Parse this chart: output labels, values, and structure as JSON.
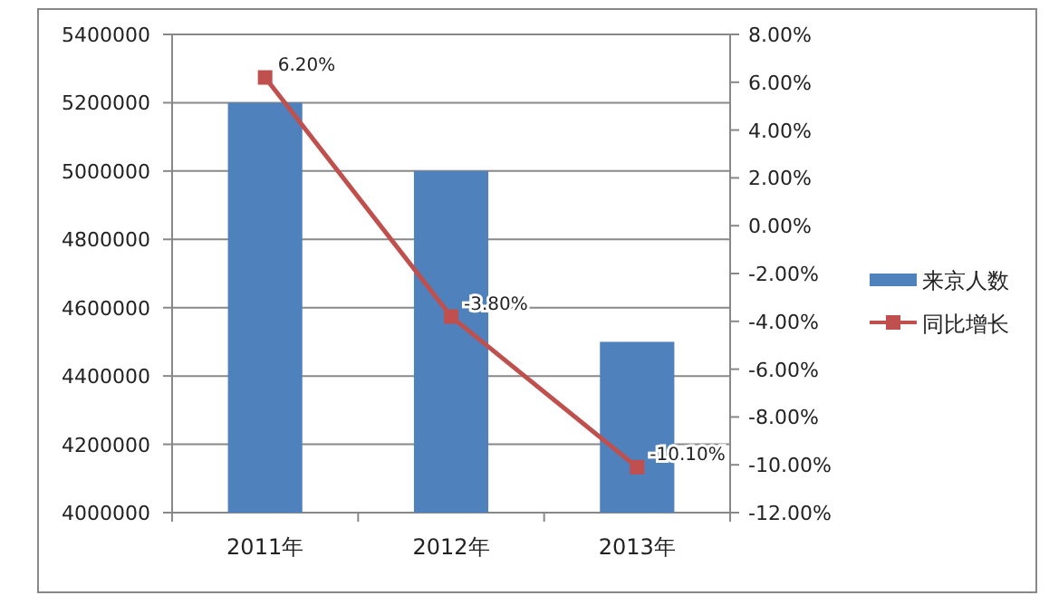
{
  "chart_data": {
    "type": "bar",
    "categories": [
      "2011年",
      "2012年",
      "2013年"
    ],
    "series": [
      {
        "name": "来京人数",
        "color": "#4f81bd",
        "values": [
          5200000,
          5000000,
          4500000
        ]
      },
      {
        "name": "同比增长",
        "type": "line",
        "axis": "y2",
        "color": "#c0504d",
        "marker": "square",
        "values": [
          6.2,
          -3.8,
          -10.1
        ],
        "value_labels": [
          "6.20%",
          "-3.80%",
          "-10.10%"
        ]
      }
    ],
    "ylim": [
      4000000,
      5400000
    ],
    "yticks": [
      4000000,
      4200000,
      4400000,
      4600000,
      4800000,
      5000000,
      5200000,
      5400000
    ],
    "y2lim": [
      -12,
      8
    ],
    "y2ticks": [
      {
        "value": -12,
        "label": "-12.00%"
      },
      {
        "value": -10,
        "label": "-10.00%"
      },
      {
        "value": -8,
        "label": "-8.00%"
      },
      {
        "value": -6,
        "label": "-6.00%"
      },
      {
        "value": -4,
        "label": "-4.00%"
      },
      {
        "value": -2,
        "label": "-2.00%"
      },
      {
        "value": 0,
        "label": "0.00%"
      },
      {
        "value": 2,
        "label": "2.00%"
      },
      {
        "value": 4,
        "label": "4.00%"
      },
      {
        "value": 6,
        "label": "6.00%"
      },
      {
        "value": 8,
        "label": "8.00%"
      }
    ],
    "grid": "y",
    "legend": "right"
  }
}
